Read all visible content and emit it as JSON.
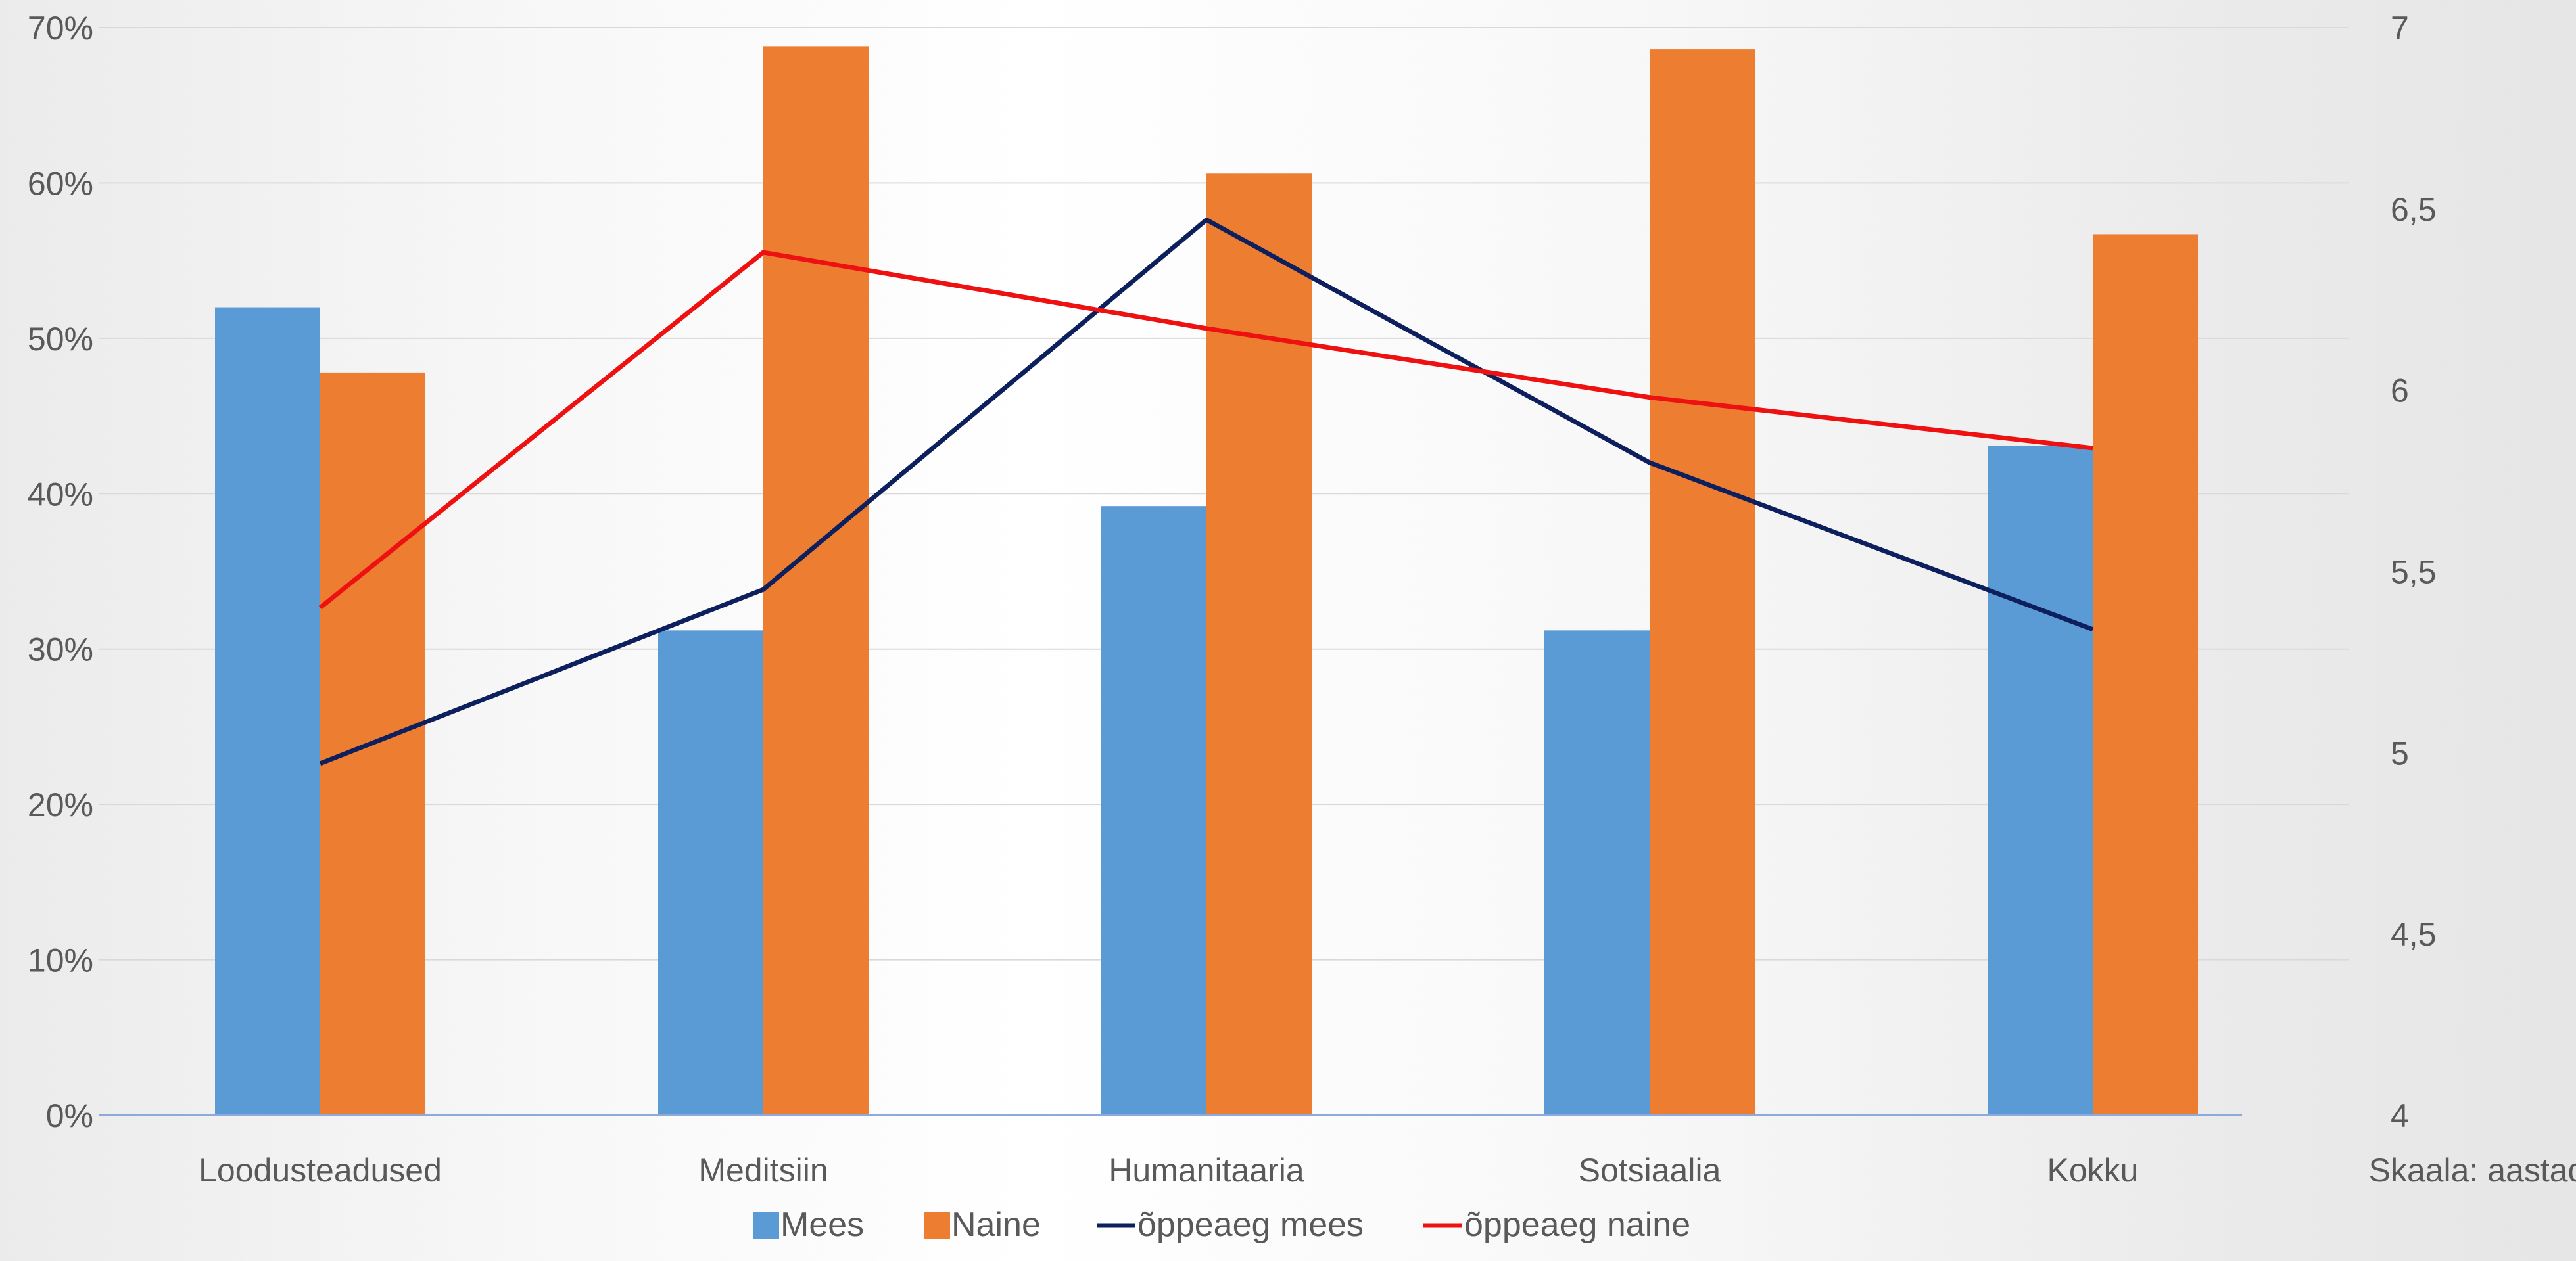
{
  "chart_data": {
    "type": "bar",
    "categories": [
      "Loodusteadused",
      "Meditsiin",
      "Humanitaaria",
      "Sotsiaalia",
      "Kokku"
    ],
    "series": [
      {
        "name": "Mees",
        "type": "bar",
        "axis": "left",
        "color": "#5b9bd5",
        "values": [
          0.52,
          0.312,
          0.392,
          0.312,
          0.431
        ]
      },
      {
        "name": "Naine",
        "type": "bar",
        "axis": "left",
        "color": "#ed7d31",
        "values": [
          0.478,
          0.688,
          0.606,
          0.686,
          0.567
        ]
      },
      {
        "name": "õppeaeg mees",
        "type": "line",
        "axis": "right",
        "color": "#0d1f5c",
        "values": [
          4.97,
          5.45,
          6.47,
          5.8,
          5.34
        ]
      },
      {
        "name": "õppeaeg naine",
        "type": "line",
        "axis": "right",
        "color": "#ee1111",
        "values": [
          5.4,
          6.38,
          6.17,
          5.98,
          5.84
        ]
      }
    ],
    "left_axis": {
      "ylim": [
        0,
        0.7
      ],
      "ticks": [
        0,
        0.1,
        0.2,
        0.3,
        0.4,
        0.5,
        0.6,
        0.7
      ],
      "tick_labels": [
        "0%",
        "10%",
        "20%",
        "30%",
        "40%",
        "50%",
        "60%",
        "70%"
      ]
    },
    "right_axis": {
      "ylim": [
        4,
        7
      ],
      "ticks": [
        4,
        4.5,
        5,
        5.5,
        6,
        6.5,
        7
      ],
      "tick_labels": [
        "4",
        "4,5",
        "5",
        "5,5",
        "6",
        "6,5",
        "7"
      ],
      "label": "Skaala: aastad"
    },
    "grid": true,
    "legend_position": "bottom"
  }
}
